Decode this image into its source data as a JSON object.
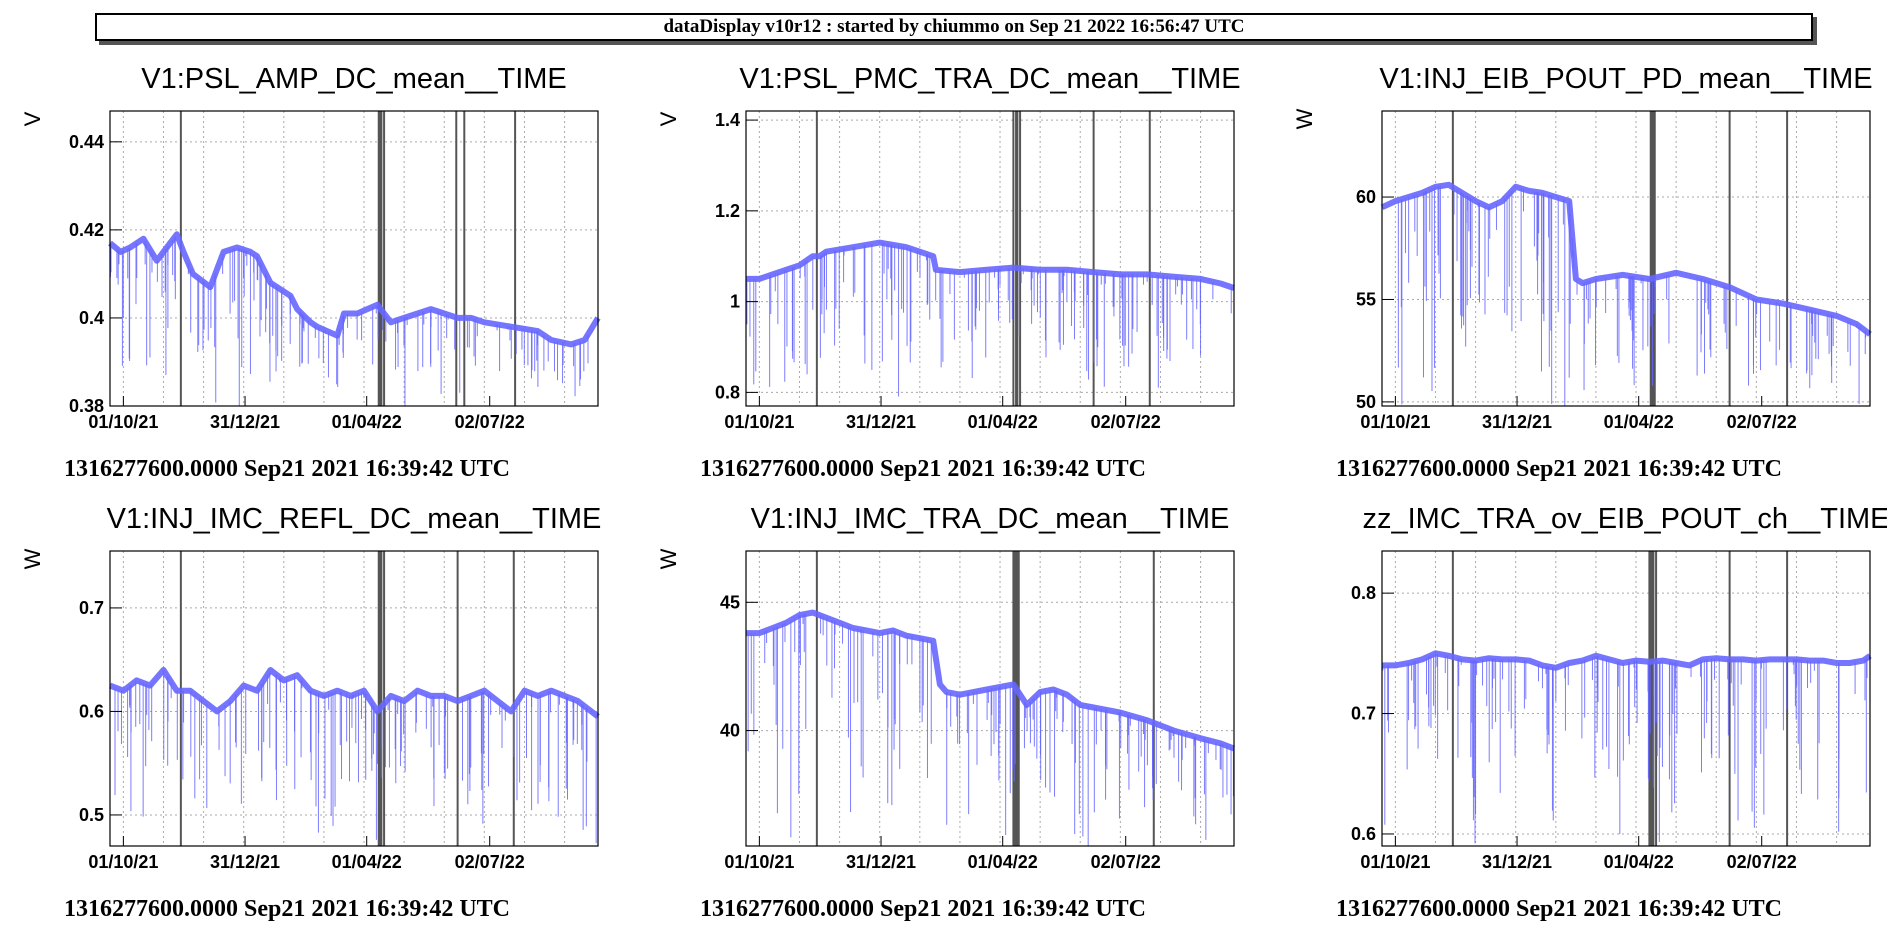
{
  "banner": "dataDisplay v10r12 : started by chiummo on Sep 21 2022 16:56:47 UTC",
  "colors": {
    "data": "#6666ff",
    "gaps": "#555555",
    "grid": "#aaaaaa",
    "frame": "#000000"
  },
  "chart_data": [
    {
      "type": "line",
      "title": "V1:PSL_AMP_DC_mean__TIME",
      "ylabel": "V",
      "xlabel": "1316277600.0000 Sep21 2021 16:39:42 UTC",
      "x_ticks": [
        "01/10/21",
        "31/12/21",
        "01/04/22",
        "02/07/22"
      ],
      "x_tick_days": [
        10,
        101,
        192,
        284
      ],
      "x_range_days": [
        0,
        365
      ],
      "ylim": [
        0.38,
        0.447
      ],
      "y_ticks": [
        0.38,
        0.4,
        0.42,
        0.44
      ],
      "y_tick_labels": [
        "0.38",
        "0.4",
        "0.42",
        "0.44"
      ],
      "gap_days": [
        53,
        201,
        202,
        203,
        205,
        259,
        265,
        303
      ],
      "series": [
        {
          "x": [
            0,
            8,
            15,
            25,
            35,
            50,
            55,
            62,
            75,
            85,
            95,
            105,
            110,
            120,
            135,
            140,
            150,
            155,
            170,
            175,
            185,
            200,
            210,
            220,
            240,
            260,
            270,
            280,
            300,
            320,
            330,
            345,
            355,
            365
          ],
          "y": [
            0.417,
            0.415,
            0.416,
            0.418,
            0.413,
            0.419,
            0.415,
            0.41,
            0.407,
            0.415,
            0.416,
            0.415,
            0.414,
            0.408,
            0.405,
            0.402,
            0.399,
            0.398,
            0.396,
            0.401,
            0.401,
            0.403,
            0.399,
            0.4,
            0.402,
            0.4,
            0.4,
            0.399,
            0.398,
            0.397,
            0.395,
            0.394,
            0.395,
            0.4
          ]
        }
      ]
    },
    {
      "type": "line",
      "title": "V1:PSL_PMC_TRA_DC_mean__TIME",
      "ylabel": "V",
      "xlabel": "1316277600.0000 Sep21 2021 16:39:42 UTC",
      "x_ticks": [
        "01/10/21",
        "31/12/21",
        "01/04/22",
        "02/07/22"
      ],
      "x_tick_days": [
        10,
        101,
        192,
        284
      ],
      "x_range_days": [
        0,
        365
      ],
      "ylim": [
        0.77,
        1.42
      ],
      "y_ticks": [
        0.8,
        1,
        1.2,
        1.4
      ],
      "y_tick_labels": [
        "0.8",
        "1",
        "1.2",
        "1.4"
      ],
      "gap_days": [
        53,
        200,
        202,
        203,
        205,
        260,
        302
      ],
      "series": [
        {
          "x": [
            0,
            10,
            20,
            30,
            40,
            50,
            55,
            60,
            80,
            100,
            120,
            140,
            142,
            160,
            180,
            200,
            220,
            240,
            260,
            280,
            300,
            320,
            340,
            355,
            365
          ],
          "y": [
            1.05,
            1.05,
            1.06,
            1.07,
            1.08,
            1.1,
            1.1,
            1.11,
            1.12,
            1.13,
            1.12,
            1.1,
            1.07,
            1.065,
            1.07,
            1.075,
            1.07,
            1.07,
            1.065,
            1.06,
            1.06,
            1.055,
            1.05,
            1.04,
            1.03
          ]
        }
      ]
    },
    {
      "type": "line",
      "title": "V1:INJ_EIB_POUT_PD_mean__TIME",
      "ylabel": "W",
      "xlabel": "1316277600.0000 Sep21 2021 16:39:42 UTC",
      "x_ticks": [
        "01/10/21",
        "31/12/21",
        "01/04/22",
        "02/07/22"
      ],
      "x_tick_days": [
        10,
        101,
        192,
        284
      ],
      "x_range_days": [
        0,
        365
      ],
      "ylim": [
        49.8,
        64.2
      ],
      "y_ticks": [
        50,
        55,
        60
      ],
      "y_tick_labels": [
        "50",
        "55",
        "60"
      ],
      "gap_days": [
        53,
        201,
        202,
        203,
        204,
        260,
        303
      ],
      "series": [
        {
          "x": [
            0,
            10,
            20,
            30,
            40,
            50,
            60,
            70,
            80,
            90,
            100,
            110,
            120,
            130,
            140,
            145,
            150,
            160,
            180,
            200,
            220,
            240,
            260,
            280,
            300,
            320,
            340,
            355,
            365
          ],
          "y": [
            59.5,
            59.8,
            60.0,
            60.2,
            60.5,
            60.6,
            60.2,
            59.8,
            59.5,
            59.8,
            60.5,
            60.3,
            60.2,
            60.0,
            59.8,
            56.0,
            55.8,
            56.0,
            56.2,
            56.0,
            56.3,
            56.0,
            55.6,
            55.0,
            54.8,
            54.5,
            54.2,
            53.8,
            53.3
          ]
        }
      ]
    },
    {
      "type": "line",
      "title": "V1:INJ_IMC_REFL_DC_mean__TIME",
      "ylabel": "W",
      "xlabel": "1316277600.0000 Sep21 2021 16:39:42 UTC",
      "x_ticks": [
        "01/10/21",
        "31/12/21",
        "01/04/22",
        "02/07/22"
      ],
      "x_tick_days": [
        10,
        101,
        192,
        284
      ],
      "x_range_days": [
        0,
        365
      ],
      "ylim": [
        0.47,
        0.755
      ],
      "y_ticks": [
        0.5,
        0.6,
        0.7
      ],
      "y_tick_labels": [
        "0.5",
        "0.6",
        "0.7"
      ],
      "gap_days": [
        53,
        201,
        202,
        203,
        205,
        260,
        302
      ],
      "series": [
        {
          "x": [
            0,
            10,
            20,
            30,
            40,
            50,
            60,
            70,
            80,
            90,
            100,
            110,
            120,
            130,
            140,
            150,
            160,
            170,
            180,
            190,
            200,
            210,
            220,
            230,
            240,
            250,
            260,
            270,
            280,
            290,
            300,
            310,
            320,
            330,
            340,
            350,
            360,
            365
          ],
          "y": [
            0.625,
            0.62,
            0.63,
            0.625,
            0.64,
            0.62,
            0.62,
            0.61,
            0.6,
            0.61,
            0.625,
            0.62,
            0.64,
            0.63,
            0.635,
            0.62,
            0.615,
            0.62,
            0.615,
            0.62,
            0.6,
            0.615,
            0.61,
            0.62,
            0.615,
            0.615,
            0.61,
            0.615,
            0.62,
            0.61,
            0.6,
            0.62,
            0.615,
            0.62,
            0.615,
            0.61,
            0.6,
            0.595
          ]
        }
      ]
    },
    {
      "type": "line",
      "title": "V1:INJ_IMC_TRA_DC_mean__TIME",
      "ylabel": "W",
      "xlabel": "1316277600.0000 Sep21 2021 16:39:42 UTC",
      "x_ticks": [
        "01/10/21",
        "31/12/21",
        "01/04/22",
        "02/07/22"
      ],
      "x_tick_days": [
        10,
        101,
        192,
        284
      ],
      "x_range_days": [
        0,
        365
      ],
      "ylim": [
        35.5,
        47.0
      ],
      "y_ticks": [
        40,
        45
      ],
      "y_tick_labels": [
        "40",
        "45"
      ],
      "gap_days": [
        53,
        200,
        201,
        202,
        203,
        204,
        305
      ],
      "series": [
        {
          "x": [
            0,
            10,
            20,
            30,
            40,
            50,
            60,
            70,
            80,
            90,
            100,
            110,
            120,
            130,
            140,
            145,
            150,
            160,
            180,
            200,
            210,
            220,
            230,
            240,
            250,
            260,
            280,
            300,
            320,
            340,
            355,
            365
          ],
          "y": [
            43.8,
            43.8,
            44.0,
            44.2,
            44.5,
            44.6,
            44.4,
            44.2,
            44.0,
            43.9,
            43.8,
            43.9,
            43.7,
            43.6,
            43.5,
            41.8,
            41.5,
            41.4,
            41.6,
            41.8,
            41.0,
            41.5,
            41.6,
            41.4,
            41.0,
            40.9,
            40.7,
            40.4,
            40.0,
            39.7,
            39.5,
            39.3
          ]
        }
      ]
    },
    {
      "type": "line",
      "title": "zz_IMC_TRA_ov_EIB_POUT_ch__TIME",
      "ylabel": "",
      "xlabel": "1316277600.0000 Sep21 2021 16:39:42 UTC",
      "x_ticks": [
        "01/10/21",
        "31/12/21",
        "01/04/22",
        "02/07/22"
      ],
      "x_tick_days": [
        10,
        101,
        192,
        284
      ],
      "x_range_days": [
        0,
        365
      ],
      "ylim": [
        0.59,
        0.835
      ],
      "y_ticks": [
        0.6,
        0.7,
        0.8
      ],
      "y_tick_labels": [
        "0.6",
        "0.7",
        "0.8"
      ],
      "gap_days": [
        53,
        200,
        201,
        202,
        203,
        205,
        260,
        303
      ],
      "series": [
        {
          "x": [
            0,
            10,
            20,
            30,
            40,
            50,
            60,
            70,
            80,
            90,
            100,
            110,
            120,
            130,
            140,
            150,
            160,
            170,
            180,
            190,
            200,
            210,
            220,
            230,
            240,
            250,
            260,
            270,
            280,
            290,
            300,
            310,
            320,
            330,
            340,
            350,
            360,
            365
          ],
          "y": [
            0.74,
            0.74,
            0.742,
            0.745,
            0.75,
            0.748,
            0.745,
            0.744,
            0.746,
            0.745,
            0.745,
            0.744,
            0.74,
            0.738,
            0.742,
            0.744,
            0.748,
            0.745,
            0.742,
            0.744,
            0.743,
            0.744,
            0.742,
            0.74,
            0.745,
            0.746,
            0.745,
            0.745,
            0.744,
            0.745,
            0.745,
            0.745,
            0.744,
            0.744,
            0.742,
            0.742,
            0.744,
            0.748
          ]
        }
      ]
    }
  ]
}
